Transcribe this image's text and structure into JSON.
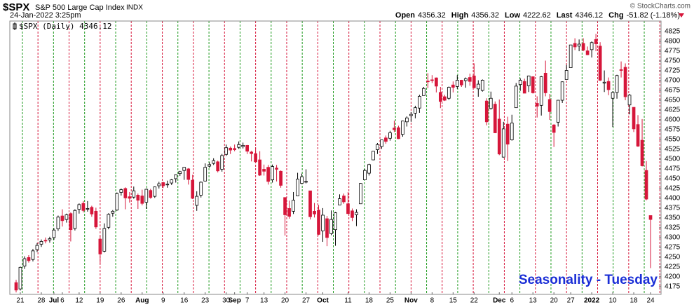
{
  "header": {
    "symbol": "$SPX",
    "name": "S&P 500 Large Cap Index",
    "exchange": "INDX",
    "date": "24-Jan-2022 3:25pm",
    "credit": "© StockCharts.com",
    "quote": [
      {
        "label": "Open",
        "value": "4356.32"
      },
      {
        "label": "High",
        "value": "4356.32"
      },
      {
        "label": "Low",
        "value": "4222.62"
      },
      {
        "label": "Last",
        "value": "4346.12"
      },
      {
        "label": "Chg",
        "value": "-51.82 (-1.18%)"
      }
    ]
  },
  "chart_data": {
    "type": "candlestick",
    "legend": "$SPX (Daily) 4346.12",
    "annotation": "Seasonality - Tuesday",
    "up_color": "#ffffff",
    "down_color": "#d6163a",
    "outline_color": "#000000",
    "annotation_color": "#1a2ed6",
    "seasonality_colors": [
      "#1f9a1f",
      "#d6163a"
    ],
    "grid": false,
    "ylim": [
      4155,
      4852
    ],
    "yticks": [
      4175,
      4200,
      4225,
      4250,
      4275,
      4300,
      4325,
      4350,
      4375,
      4400,
      4425,
      4450,
      4475,
      4500,
      4525,
      4550,
      4575,
      4600,
      4625,
      4650,
      4675,
      4700,
      4725,
      4750,
      4775,
      4800,
      4825
    ],
    "xlim": [
      -1.5,
      153.5
    ],
    "xticks": [
      {
        "value": 1,
        "label": "21"
      },
      {
        "value": 6,
        "label": "28"
      },
      {
        "value": 9,
        "label": "Jul"
      },
      {
        "value": 11,
        "label": "6"
      },
      {
        "value": 15,
        "label": "12"
      },
      {
        "value": 20,
        "label": "19"
      },
      {
        "value": 25,
        "label": "26"
      },
      {
        "value": 30,
        "label": "Aug"
      },
      {
        "value": 35,
        "label": "9"
      },
      {
        "value": 40,
        "label": "16"
      },
      {
        "value": 45,
        "label": "23"
      },
      {
        "value": 50,
        "label": "30"
      },
      {
        "value": 52,
        "label": "Sep"
      },
      {
        "value": 55,
        "label": "7"
      },
      {
        "value": 59,
        "label": "13"
      },
      {
        "value": 64,
        "label": "20"
      },
      {
        "value": 69,
        "label": "27"
      },
      {
        "value": 73,
        "label": "Oct"
      },
      {
        "value": 79,
        "label": "11"
      },
      {
        "value": 84,
        "label": "18"
      },
      {
        "value": 89,
        "label": "25"
      },
      {
        "value": 94,
        "label": "Nov"
      },
      {
        "value": 99,
        "label": "8"
      },
      {
        "value": 104,
        "label": "15"
      },
      {
        "value": 109,
        "label": "22"
      },
      {
        "value": 115,
        "label": "Dec"
      },
      {
        "value": 118,
        "label": "6"
      },
      {
        "value": 123,
        "label": "13"
      },
      {
        "value": 128,
        "label": "20"
      },
      {
        "value": 132,
        "label": "27"
      },
      {
        "value": 137,
        "label": "2022"
      },
      {
        "value": 142,
        "label": "10"
      },
      {
        "value": 147,
        "label": "18"
      },
      {
        "value": 151,
        "label": "24"
      }
    ],
    "ohlc": [
      [
        4185,
        4192,
        4160,
        4166
      ],
      [
        4169,
        4226,
        4165,
        4224
      ],
      [
        4227,
        4252,
        4220,
        4246
      ],
      [
        4249,
        4255,
        4236,
        4241
      ],
      [
        4244,
        4271,
        4239,
        4266
      ],
      [
        4269,
        4286,
        4263,
        4280
      ],
      [
        4283,
        4295,
        4276,
        4290
      ],
      [
        4293,
        4300,
        4285,
        4291
      ],
      [
        4294,
        4302,
        4287,
        4297
      ],
      [
        4300,
        4324,
        4294,
        4319
      ],
      [
        4322,
        4356,
        4317,
        4352
      ],
      [
        4355,
        4372,
        4328,
        4343
      ],
      [
        4346,
        4361,
        4338,
        4358
      ],
      [
        4361,
        4364,
        4290,
        4320
      ],
      [
        4323,
        4372,
        4318,
        4369
      ],
      [
        4372,
        4387,
        4361,
        4384
      ],
      [
        4387,
        4393,
        4364,
        4369
      ],
      [
        4372,
        4393,
        4366,
        4374
      ],
      [
        4377,
        4381,
        4353,
        4360
      ],
      [
        4367,
        4376,
        4322,
        4327
      ],
      [
        4296,
        4305,
        4233,
        4258
      ],
      [
        4265,
        4336,
        4262,
        4323
      ],
      [
        4326,
        4362,
        4321,
        4359
      ],
      [
        4362,
        4370,
        4353,
        4367
      ],
      [
        4370,
        4415,
        4368,
        4412
      ],
      [
        4415,
        4425,
        4407,
        4422
      ],
      [
        4425,
        4428,
        4372,
        4401
      ],
      [
        4404,
        4416,
        4389,
        4400
      ],
      [
        4403,
        4430,
        4399,
        4419
      ],
      [
        4408,
        4412,
        4373,
        4395
      ],
      [
        4406,
        4422,
        4382,
        4387
      ],
      [
        4390,
        4425,
        4373,
        4423
      ],
      [
        4420,
        4424,
        4399,
        4402
      ],
      [
        4405,
        4430,
        4401,
        4429
      ],
      [
        4432,
        4442,
        4425,
        4437
      ],
      [
        4440,
        4442,
        4426,
        4432
      ],
      [
        4435,
        4445,
        4427,
        4436
      ],
      [
        4439,
        4449,
        4434,
        4447
      ],
      [
        4450,
        4461,
        4440,
        4460
      ],
      [
        4463,
        4470,
        4457,
        4468
      ],
      [
        4471,
        4480,
        4447,
        4479
      ],
      [
        4475,
        4477,
        4435,
        4448
      ],
      [
        4446,
        4460,
        4398,
        4400
      ],
      [
        4382,
        4418,
        4368,
        4405
      ],
      [
        4408,
        4443,
        4402,
        4441
      ],
      [
        4444,
        4489,
        4443,
        4479
      ],
      [
        4482,
        4492,
        4478,
        4486
      ],
      [
        4489,
        4502,
        4485,
        4496
      ],
      [
        4493,
        4496,
        4466,
        4470
      ],
      [
        4474,
        4513,
        4468,
        4509
      ],
      [
        4512,
        4537,
        4508,
        4529
      ],
      [
        4528,
        4532,
        4513,
        4523
      ],
      [
        4527,
        4537,
        4520,
        4524
      ],
      [
        4530,
        4545,
        4526,
        4537
      ],
      [
        4532,
        4542,
        4527,
        4535
      ],
      [
        4535,
        4536,
        4513,
        4520
      ],
      [
        4518,
        4521,
        4494,
        4514
      ],
      [
        4514,
        4529,
        4493,
        4493
      ],
      [
        4498,
        4520,
        4457,
        4459
      ],
      [
        4474,
        4486,
        4458,
        4469
      ],
      [
        4479,
        4485,
        4435,
        4443
      ],
      [
        4447,
        4486,
        4440,
        4481
      ],
      [
        4477,
        4485,
        4443,
        4474
      ],
      [
        4469,
        4471,
        4427,
        4433
      ],
      [
        4402,
        4402,
        4305,
        4358
      ],
      [
        4374,
        4394,
        4348,
        4354
      ],
      [
        4367,
        4416,
        4360,
        4395
      ],
      [
        4406,
        4465,
        4406,
        4449
      ],
      [
        4438,
        4463,
        4436,
        4455
      ],
      [
        4442,
        4474,
        4438,
        4443
      ],
      [
        4419,
        4419,
        4346,
        4353
      ],
      [
        4367,
        4388,
        4351,
        4360
      ],
      [
        4370,
        4383,
        4306,
        4308
      ],
      [
        4317,
        4375,
        4289,
        4357
      ],
      [
        4348,
        4355,
        4278,
        4300
      ],
      [
        4310,
        4369,
        4306,
        4346
      ],
      [
        4320,
        4365,
        4279,
        4363
      ],
      [
        4383,
        4410,
        4383,
        4399
      ],
      [
        4406,
        4412,
        4386,
        4391
      ],
      [
        4386,
        4416,
        4360,
        4361
      ],
      [
        4368,
        4374,
        4342,
        4351
      ],
      [
        4358,
        4372,
        4329,
        4364
      ],
      [
        4386,
        4439,
        4386,
        4438
      ],
      [
        4447,
        4475,
        4447,
        4471
      ],
      [
        4464,
        4488,
        4458,
        4486
      ],
      [
        4498,
        4520,
        4497,
        4520
      ],
      [
        4524,
        4541,
        4513,
        4537
      ],
      [
        4532,
        4549,
        4526,
        4549
      ],
      [
        4554,
        4560,
        4539,
        4545
      ],
      [
        4553,
        4572,
        4547,
        4567
      ],
      [
        4579,
        4598,
        4569,
        4575
      ],
      [
        4580,
        4585,
        4551,
        4552
      ],
      [
        4563,
        4598,
        4557,
        4597
      ],
      [
        4595,
        4609,
        4583,
        4605
      ],
      [
        4611,
        4620,
        4595,
        4614
      ],
      [
        4617,
        4636,
        4604,
        4631
      ],
      [
        4630,
        4664,
        4618,
        4660
      ],
      [
        4662,
        4684,
        4662,
        4680
      ],
      [
        4699,
        4719,
        4681,
        4697
      ],
      [
        4702,
        4714,
        4694,
        4701
      ],
      [
        4707,
        4708,
        4670,
        4686
      ],
      [
        4670,
        4684,
        4630,
        4647
      ],
      [
        4659,
        4664,
        4648,
        4650
      ],
      [
        4655,
        4685,
        4651,
        4683
      ],
      [
        4689,
        4698,
        4670,
        4683
      ],
      [
        4685,
        4714,
        4679,
        4701
      ],
      [
        4701,
        4702,
        4684,
        4689
      ],
      [
        4700,
        4708,
        4682,
        4705
      ],
      [
        4708,
        4718,
        4687,
        4698
      ],
      [
        4712,
        4744,
        4680,
        4682
      ],
      [
        4679,
        4701,
        4659,
        4691
      ],
      [
        4675,
        4703,
        4672,
        4701
      ],
      [
        4648,
        4655,
        4586,
        4595
      ],
      [
        4629,
        4672,
        4626,
        4655
      ],
      [
        4640,
        4647,
        4566,
        4567
      ],
      [
        4602,
        4652,
        4510,
        4513
      ],
      [
        4505,
        4595,
        4504,
        4577
      ],
      [
        4589,
        4608,
        4495,
        4538
      ],
      [
        4549,
        4613,
        4547,
        4592
      ],
      [
        4631,
        4694,
        4631,
        4686
      ],
      [
        4690,
        4706,
        4674,
        4701
      ],
      [
        4698,
        4705,
        4668,
        4668
      ],
      [
        4687,
        4713,
        4671,
        4712
      ],
      [
        4710,
        4711,
        4667,
        4669
      ],
      [
        4642,
        4660,
        4606,
        4635
      ],
      [
        4637,
        4712,
        4611,
        4710
      ],
      [
        4719,
        4751,
        4660,
        4669
      ],
      [
        4652,
        4666,
        4600,
        4621
      ],
      [
        4587,
        4589,
        4531,
        4568
      ],
      [
        4594,
        4651,
        4583,
        4650
      ],
      [
        4650,
        4698,
        4643,
        4697
      ],
      [
        4703,
        4740,
        4703,
        4726
      ],
      [
        4733,
        4791,
        4733,
        4791
      ],
      [
        4795,
        4808,
        4778,
        4786
      ],
      [
        4788,
        4805,
        4775,
        4793
      ],
      [
        4795,
        4808,
        4775,
        4778
      ],
      [
        4776,
        4787,
        4765,
        4766
      ],
      [
        4779,
        4800,
        4759,
        4797
      ],
      [
        4805,
        4819,
        4775,
        4794
      ],
      [
        4788,
        4798,
        4699,
        4701
      ],
      [
        4694,
        4726,
        4671,
        4696
      ],
      [
        4698,
        4708,
        4663,
        4677
      ],
      [
        4655,
        4673,
        4582,
        4670
      ],
      [
        4670,
        4715,
        4654,
        4713
      ],
      [
        4728,
        4749,
        4708,
        4726
      ],
      [
        4734,
        4744,
        4650,
        4659
      ],
      [
        4638,
        4666,
        4614,
        4663
      ],
      [
        4632,
        4632,
        4569,
        4577
      ],
      [
        4588,
        4612,
        4531,
        4533
      ],
      [
        4548,
        4602,
        4481,
        4483
      ],
      [
        4471,
        4495,
        4395,
        4398
      ],
      [
        4356,
        4356,
        4222,
        4346
      ]
    ]
  }
}
